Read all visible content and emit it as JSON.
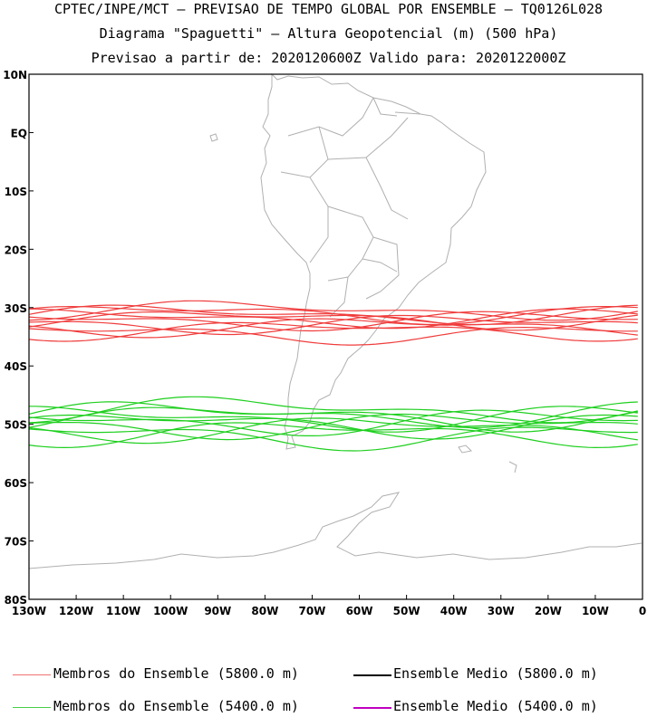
{
  "header": {
    "line1": "CPTEC/INPE/MCT – PREVISAO DE TEMPO GLOBAL POR ENSEMBLE – TQ0126L028",
    "line2": "Diagrama \"Spaguetti\" – Altura Geopotencial (m) (500 hPa)",
    "line3": "Previsao a partir de: 2020120600Z  Valido para: 2020122000Z"
  },
  "map": {
    "lon_range": [
      -130,
      0
    ],
    "lat_range": [
      -80,
      10
    ],
    "lat_ticks": [
      "10N",
      "EQ",
      "10S",
      "20S",
      "30S",
      "40S",
      "50S",
      "60S",
      "70S",
      "80S"
    ],
    "lon_ticks": [
      "130W",
      "120W",
      "110W",
      "100W",
      "90W",
      "80W",
      "70W",
      "60W",
      "50W",
      "40W",
      "30W",
      "20W",
      "10W",
      "0"
    ],
    "coastline_color": "#b0b0b0",
    "contour_5800_color": "#f03c3c",
    "contour_5400_color": "#1ecf1e",
    "members_5800_lat": [
      -30.5,
      -31.2,
      -31.8,
      -32.2,
      -32.8,
      -33.3,
      -33.9,
      -32.0,
      -31.0,
      -34.5
    ],
    "members_5400_lat": [
      -47.5,
      -48.3,
      -49.0,
      -49.6,
      -50.2,
      -50.8,
      -51.5,
      -48.8,
      -50.0,
      -52.0
    ]
  },
  "legend": {
    "members_5800": {
      "label": "Membros do Ensemble (5800.0 m)",
      "color": "#f07070"
    },
    "mean_5800": {
      "label": "Ensemble Medio (5800.0 m)",
      "color": "#000000"
    },
    "members_5400": {
      "label": "Membros do Ensemble (5400.0 m)",
      "color": "#46d046"
    },
    "mean_5400": {
      "label": "Ensemble Medio (5400.0 m)",
      "color": "#c000c0"
    }
  }
}
